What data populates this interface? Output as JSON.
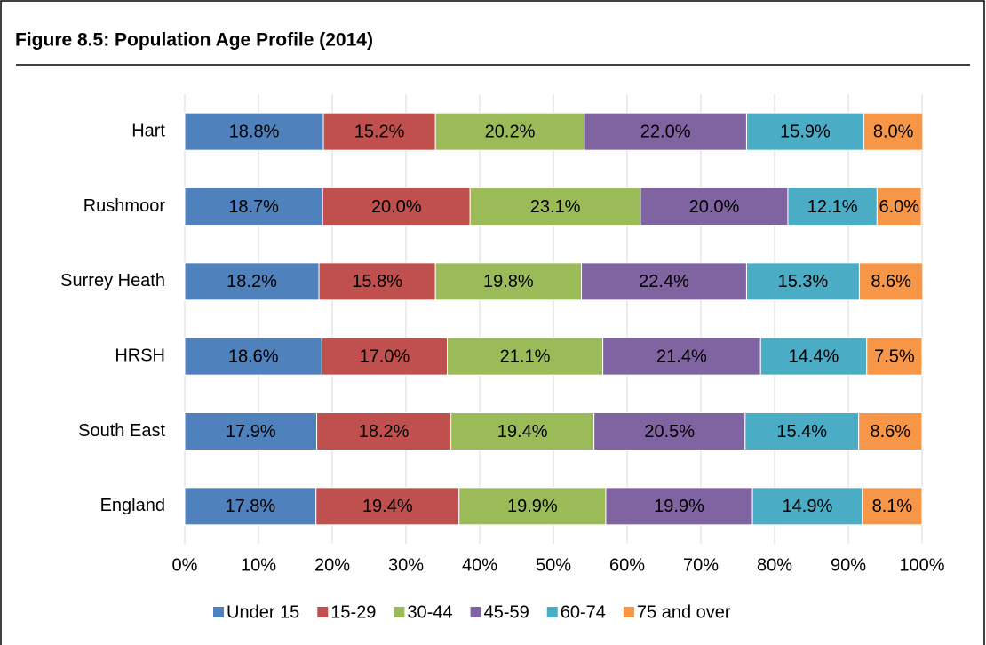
{
  "chart_data": {
    "type": "bar",
    "orientation": "horizontal",
    "stacked": true,
    "title": "Figure 8.5: Population Age Profile (2014)",
    "categories": [
      "Hart",
      "Rushmoor",
      "Surrey Heath",
      "HRSH",
      "South East",
      "England"
    ],
    "series": [
      {
        "name": "Under 15",
        "color": "#4f81bd",
        "values": [
          18.8,
          18.7,
          18.2,
          18.6,
          17.9,
          17.8
        ],
        "value_labels": [
          "18.8%",
          "18.7%",
          "18.2%",
          "18.6%",
          "17.9%",
          "17.8%"
        ]
      },
      {
        "name": "15-29",
        "color": "#c0504d",
        "values": [
          15.2,
          20.0,
          15.8,
          17.0,
          18.2,
          19.4
        ],
        "value_labels": [
          "15.2%",
          "20.0%",
          "15.8%",
          "17.0%",
          "18.2%",
          "19.4%"
        ]
      },
      {
        "name": "30-44",
        "color": "#9bbb59",
        "values": [
          20.2,
          23.1,
          19.8,
          21.1,
          19.4,
          19.9
        ],
        "value_labels": [
          "20.2%",
          "23.1%",
          "19.8%",
          "21.1%",
          "19.4%",
          "19.9%"
        ]
      },
      {
        "name": "45-59",
        "color": "#8064a2",
        "values": [
          22.0,
          20.0,
          22.4,
          21.4,
          20.5,
          19.9
        ],
        "value_labels": [
          "22.0%",
          "20.0%",
          "22.4%",
          "21.4%",
          "20.5%",
          "19.9%"
        ]
      },
      {
        "name": "60-74",
        "color": "#4bacc6",
        "values": [
          15.9,
          12.1,
          15.3,
          14.4,
          15.4,
          14.9
        ],
        "value_labels": [
          "15.9%",
          "12.1%",
          "15.3%",
          "14.4%",
          "15.4%",
          "14.9%"
        ]
      },
      {
        "name": "75 and over",
        "color": "#f79646",
        "values": [
          8.0,
          6.0,
          8.6,
          7.5,
          8.6,
          8.1
        ],
        "value_labels": [
          "8.0%",
          "6.0%",
          "8.6%",
          "7.5%",
          "8.6%",
          "8.1%"
        ]
      }
    ],
    "xlim": [
      0,
      100
    ],
    "xticks": [
      {
        "value": 0,
        "label": "0%"
      },
      {
        "value": 10,
        "label": "10%"
      },
      {
        "value": 20,
        "label": "20%"
      },
      {
        "value": 30,
        "label": "30%"
      },
      {
        "value": 40,
        "label": "40%"
      },
      {
        "value": 50,
        "label": "50%"
      },
      {
        "value": 60,
        "label": "60%"
      },
      {
        "value": 70,
        "label": "70%"
      },
      {
        "value": 80,
        "label": "80%"
      },
      {
        "value": 90,
        "label": "90%"
      },
      {
        "value": 100,
        "label": "100%"
      }
    ],
    "grid": true,
    "legend": "bottom"
  }
}
